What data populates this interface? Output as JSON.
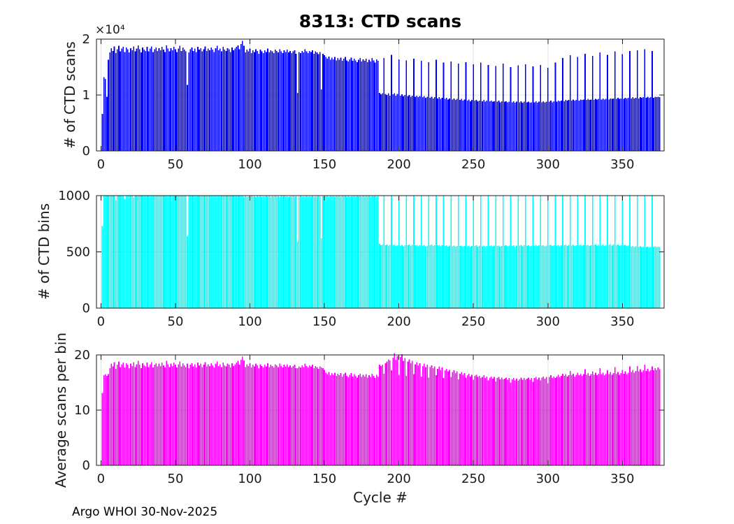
{
  "footer": {
    "text": "Argo WHOI 30-Nov-2025"
  },
  "chart_data": [
    {
      "id": "ctd-scans",
      "type": "bar",
      "title": "8313: CTD scans",
      "ylabel": "# of CTD scans",
      "xlabel": "",
      "bar_color": "#0000ff",
      "xlim": [
        -3,
        378
      ],
      "ylim": [
        0,
        20000
      ],
      "xticks": [
        0,
        50,
        100,
        150,
        200,
        250,
        300,
        350
      ],
      "yticks": [
        0,
        10000,
        20000
      ],
      "ytick_labels": [
        "0",
        "1",
        "2"
      ],
      "y_exponent_label": "×10⁴",
      "x_start": 1,
      "values": [
        6600,
        13200,
        12900,
        9700,
        16300,
        17600,
        18400,
        17900,
        18700,
        17500,
        18200,
        18800,
        17800,
        18300,
        18600,
        17700,
        18500,
        18200,
        17600,
        18400,
        18000,
        18700,
        17800,
        18300,
        18900,
        18200,
        17600,
        18500,
        18100,
        17900,
        18600,
        17800,
        18300,
        18700,
        17700,
        18200,
        18500,
        17900,
        18400,
        18000,
        18600,
        18100,
        17700,
        18900,
        18300,
        17800,
        18400,
        18000,
        18600,
        18200,
        17700,
        18300,
        18800,
        17900,
        18500,
        18100,
        17800,
        11800,
        17600,
        18200,
        18500,
        17900,
        18300,
        17700,
        18600,
        18100,
        18400,
        17800,
        18200,
        18700,
        17900,
        18300,
        18000,
        18500,
        18100,
        17700,
        18400,
        18800,
        18000,
        18300,
        17800,
        18600,
        18100,
        17900,
        18400,
        18200,
        17700,
        18500,
        18000,
        18300,
        18600,
        18900,
        18200,
        19100,
        19700,
        18800,
        17600,
        18100,
        17800,
        18300,
        17500,
        18000,
        17700,
        18200,
        17900,
        17400,
        18100,
        17800,
        17500,
        18000,
        17700,
        18300,
        17600,
        18000,
        17800,
        17500,
        18100,
        17900,
        17600,
        18200,
        17800,
        17500,
        18000,
        17700,
        18100,
        17600,
        17900,
        17500,
        17800,
        18000,
        17400,
        10400,
        17700,
        17500,
        17900,
        17600,
        18200,
        17800,
        17500,
        17900,
        17700,
        18000,
        17400,
        17800,
        17600,
        17300,
        17700,
        11000,
        17400,
        17100,
        16800,
        16500,
        16900,
        16300,
        16700,
        16400,
        16800,
        16200,
        16600,
        16300,
        16700,
        16100,
        16500,
        16800,
        16200,
        16000,
        16400,
        16700,
        16100,
        16500,
        16200,
        15900,
        16300,
        16600,
        16000,
        16400,
        16100,
        16500,
        15900,
        16300,
        16000,
        16600,
        16200,
        15800,
        16400,
        16100,
        10400,
        10100,
        10300,
        16600,
        10200,
        10000,
        10300,
        9900,
        17200,
        10100,
        10300,
        9900,
        10200,
        16400,
        9900,
        10100,
        9800,
        10000,
        16200,
        9800,
        10000,
        9700,
        9900,
        16500,
        9700,
        9900,
        9600,
        9800,
        16100,
        9600,
        9800,
        9500,
        9700,
        15900,
        9500,
        9700,
        9400,
        9600,
        16300,
        9400,
        9600,
        9300,
        9500,
        15800,
        9300,
        9500,
        9200,
        9400,
        16000,
        9200,
        9400,
        9100,
        9300,
        15600,
        9100,
        9300,
        9000,
        9200,
        15900,
        9000,
        9200,
        8900,
        9100,
        15500,
        9000,
        9100,
        8900,
        9000,
        15800,
        8900,
        9100,
        8800,
        9000,
        15400,
        8900,
        9000,
        8800,
        8900,
        15200,
        8800,
        9000,
        8700,
        8900,
        15600,
        8800,
        8900,
        8700,
        8800,
        15000,
        8700,
        8900,
        8600,
        8800,
        15300,
        8700,
        8900,
        8600,
        8800,
        15500,
        8700,
        8800,
        8600,
        8700,
        15100,
        8700,
        8900,
        8600,
        8800,
        15400,
        8700,
        8900,
        8700,
        8800,
        14900,
        8800,
        9000,
        8700,
        8900,
        15800,
        8800,
        9000,
        8900,
        9000,
        16600,
        8900,
        9100,
        9000,
        9100,
        17100,
        9000,
        9200,
        9000,
        9100,
        16800,
        9000,
        9200,
        9100,
        9200,
        17400,
        9100,
        9300,
        9100,
        9200,
        17000,
        9100,
        9300,
        9200,
        9300,
        17600,
        9200,
        9400,
        9200,
        9300,
        17200,
        9200,
        9400,
        9300,
        9400,
        17800,
        9300,
        9500,
        9300,
        9400,
        17300,
        9300,
        9500,
        9400,
        9500,
        17900,
        9400,
        9600,
        9400,
        9500,
        18000,
        9400,
        9600,
        9500,
        9600,
        18200,
        9500,
        9700,
        9500,
        9600,
        17900,
        9500,
        9700,
        9600,
        9700,
        9600
      ]
    },
    {
      "id": "ctd-bins",
      "type": "bar",
      "title": "",
      "ylabel": "# of CTD bins",
      "xlabel": "",
      "bar_color": "#00ffff",
      "xlim": [
        -3,
        378
      ],
      "ylim": [
        0,
        1000
      ],
      "xticks": [
        0,
        50,
        100,
        150,
        200,
        250,
        300,
        350
      ],
      "yticks": [
        0,
        500,
        1000
      ],
      "ytick_labels": [
        "0",
        "500",
        "1000"
      ],
      "y_exponent_label": "",
      "x_start": 1,
      "values": [
        730,
        1000,
        1000,
        1000,
        1000,
        1000,
        1000,
        1000,
        1000,
        960,
        1000,
        1000,
        1000,
        1000,
        1000,
        970,
        1000,
        1000,
        1000,
        1000,
        1000,
        985,
        1000,
        1000,
        1000,
        1000,
        1000,
        1000,
        1000,
        1000,
        1000,
        1000,
        1000,
        1000,
        1000,
        1000,
        1000,
        1000,
        1000,
        1000,
        1000,
        1000,
        1000,
        1000,
        1000,
        1000,
        1000,
        1000,
        1000,
        1000,
        1000,
        1000,
        1000,
        1000,
        1000,
        1000,
        1000,
        640,
        1000,
        1000,
        1000,
        1000,
        1000,
        1000,
        1000,
        1000,
        1000,
        1000,
        1000,
        1000,
        1000,
        1000,
        1000,
        1000,
        1000,
        1000,
        1000,
        1000,
        1000,
        1000,
        1000,
        1000,
        1000,
        1000,
        1000,
        1000,
        1000,
        1000,
        1000,
        1000,
        1000,
        1000,
        1000,
        1000,
        1000,
        990,
        996,
        988,
        995,
        992,
        998,
        990,
        994,
        989,
        996,
        991,
        997,
        988,
        995,
        990,
        998,
        992,
        996,
        989,
        994,
        991,
        997,
        990,
        995,
        988,
        996,
        992,
        998,
        990,
        994,
        989,
        995,
        991,
        997,
        990,
        993,
        590,
        992,
        996,
        990,
        995,
        991,
        997,
        990,
        994,
        992,
        996,
        989,
        995,
        991,
        996,
        990,
        620,
        995,
        992,
        995,
        1000,
        992,
        998,
        994,
        1000,
        990,
        996,
        993,
        999,
        991,
        997,
        994,
        1000,
        992,
        998,
        990,
        995,
        993,
        999,
        991,
        996,
        994,
        1000,
        992,
        997,
        990,
        998,
        993,
        999,
        991,
        996,
        994,
        998,
        992,
        997,
        570,
        560,
        565,
        1000,
        560,
        565,
        555,
        562,
        1000,
        558,
        564,
        552,
        560,
        1000,
        556,
        562,
        550,
        558,
        1000,
        560,
        566,
        554,
        561,
        1000,
        558,
        563,
        551,
        559,
        1000,
        556,
        561,
        549,
        557,
        1000,
        560,
        565,
        553,
        560,
        1000,
        558,
        563,
        551,
        558,
        1000,
        552,
        558,
        548,
        555,
        1000,
        550,
        556,
        546,
        553,
        1000,
        552,
        557,
        547,
        554,
        1000,
        550,
        555,
        545,
        552,
        1000,
        553,
        558,
        548,
        555,
        1000,
        551,
        556,
        546,
        553,
        1000,
        554,
        559,
        549,
        556,
        1000,
        552,
        557,
        547,
        554,
        1000,
        555,
        560,
        550,
        557,
        1000,
        553,
        558,
        548,
        555,
        1000,
        556,
        561,
        551,
        558,
        1000,
        554,
        559,
        549,
        556,
        1000,
        557,
        562,
        552,
        559,
        1000,
        555,
        560,
        550,
        557,
        1000,
        558,
        563,
        553,
        560,
        1000,
        556,
        561,
        551,
        558,
        1000,
        559,
        564,
        554,
        561,
        1000,
        557,
        562,
        552,
        559,
        1000,
        560,
        565,
        555,
        562,
        1000,
        558,
        563,
        553,
        560,
        1000,
        561,
        566,
        556,
        563,
        1000,
        559,
        564,
        554,
        561,
        1000,
        562,
        567,
        557,
        564,
        1000,
        560,
        565,
        555,
        562,
        1000,
        558,
        563,
        553,
        560,
        1000,
        548,
        552,
        544,
        549,
        1000,
        546,
        550,
        542,
        547,
        1000,
        544,
        548,
        540,
        545,
        1000,
        545,
        550,
        543,
        548,
        544
      ]
    },
    {
      "id": "avg-scans-per-bin",
      "type": "bar",
      "title": "",
      "ylabel": "Average scans per bin",
      "xlabel": "Cycle #",
      "bar_color": "#ff00ff",
      "xlim": [
        -3,
        378
      ],
      "ylim": [
        0,
        20
      ],
      "xticks": [
        0,
        50,
        100,
        150,
        200,
        250,
        300,
        350
      ],
      "yticks": [
        0,
        10,
        20
      ],
      "ytick_labels": [
        "0",
        "10",
        "20"
      ],
      "y_exponent_label": "",
      "x_start": 1,
      "values": [
        13.1,
        16.3,
        16.5,
        16.2,
        16.5,
        17.6,
        18.4,
        17.9,
        18.7,
        17.5,
        18.2,
        18.8,
        17.8,
        18.3,
        18.6,
        17.7,
        18.5,
        18.2,
        17.6,
        18.4,
        18.0,
        18.7,
        17.8,
        18.3,
        18.9,
        18.2,
        17.6,
        18.5,
        18.1,
        17.9,
        18.6,
        17.8,
        18.3,
        18.7,
        17.7,
        18.2,
        18.5,
        17.9,
        18.4,
        18.0,
        18.6,
        18.1,
        17.7,
        18.9,
        18.3,
        17.8,
        18.4,
        18.0,
        18.6,
        18.2,
        17.7,
        18.3,
        18.8,
        17.9,
        18.5,
        18.1,
        17.8,
        18.4,
        17.6,
        18.2,
        18.5,
        17.9,
        18.3,
        17.7,
        18.6,
        18.1,
        18.4,
        17.8,
        18.2,
        18.7,
        17.9,
        18.3,
        18.0,
        18.5,
        18.1,
        17.7,
        18.4,
        18.8,
        18.0,
        18.3,
        17.8,
        18.6,
        18.1,
        17.9,
        18.4,
        18.2,
        17.7,
        18.5,
        18.0,
        18.3,
        18.6,
        18.9,
        18.2,
        19.1,
        19.7,
        19.0,
        17.8,
        18.3,
        18.0,
        18.5,
        17.7,
        18.2,
        17.9,
        18.4,
        18.1,
        17.6,
        18.3,
        18.0,
        17.7,
        18.2,
        17.9,
        18.5,
        17.8,
        18.2,
        18.0,
        17.7,
        18.3,
        18.1,
        17.8,
        18.4,
        18.0,
        17.7,
        18.2,
        17.9,
        18.3,
        17.8,
        18.1,
        17.7,
        18.0,
        18.2,
        17.6,
        17.6,
        17.9,
        17.7,
        18.1,
        17.8,
        18.4,
        18.0,
        17.7,
        18.1,
        17.9,
        18.2,
        17.6,
        18.0,
        17.8,
        17.5,
        17.9,
        17.7,
        17.6,
        17.3,
        16.8,
        16.5,
        16.9,
        16.3,
        16.7,
        16.4,
        16.8,
        16.2,
        16.6,
        16.3,
        16.7,
        16.1,
        16.5,
        16.8,
        16.2,
        16.0,
        16.4,
        16.7,
        16.1,
        16.5,
        16.2,
        15.9,
        16.3,
        16.6,
        16.0,
        16.4,
        16.1,
        16.5,
        15.9,
        16.3,
        16.0,
        16.6,
        16.2,
        15.8,
        16.4,
        16.1,
        18.2,
        18.0,
        18.2,
        16.6,
        18.5,
        18.8,
        19.2,
        19.0,
        17.2,
        19.5,
        20.3,
        19.1,
        19.8,
        16.4,
        19.6,
        20.1,
        18.9,
        19.4,
        16.2,
        18.8,
        19.2,
        18.5,
        18.9,
        16.5,
        18.3,
        18.7,
        18.1,
        18.5,
        16.1,
        18.0,
        18.4,
        17.8,
        18.2,
        15.9,
        17.8,
        18.1,
        17.6,
        17.9,
        16.3,
        17.5,
        17.9,
        17.3,
        17.7,
        15.8,
        17.2,
        17.5,
        17.0,
        17.3,
        16.0,
        16.9,
        17.2,
        16.7,
        17.0,
        15.6,
        16.6,
        16.9,
        16.4,
        16.7,
        15.9,
        16.3,
        16.6,
        16.1,
        16.4,
        15.5,
        16.2,
        16.4,
        16.0,
        16.2,
        15.8,
        16.0,
        16.3,
        15.8,
        16.1,
        15.4,
        15.9,
        16.1,
        15.7,
        16.0,
        15.2,
        15.8,
        16.0,
        15.6,
        15.9,
        15.6,
        15.7,
        15.9,
        15.5,
        15.8,
        15.0,
        15.6,
        15.8,
        15.4,
        15.7,
        15.3,
        15.6,
        15.9,
        15.5,
        15.8,
        15.5,
        15.7,
        15.9,
        15.5,
        15.8,
        15.1,
        15.8,
        16.0,
        15.6,
        15.9,
        15.4,
        15.9,
        16.1,
        15.7,
        16.0,
        14.9,
        16.0,
        16.3,
        15.8,
        16.1,
        15.8,
        16.1,
        16.4,
        16.0,
        16.2,
        16.6,
        16.2,
        16.5,
        16.1,
        16.3,
        17.1,
        16.3,
        16.6,
        16.1,
        16.4,
        16.8,
        16.3,
        16.6,
        16.2,
        16.5,
        17.4,
        16.4,
        16.7,
        16.2,
        16.5,
        17.0,
        16.4,
        16.8,
        16.3,
        16.6,
        17.6,
        16.5,
        16.8,
        16.3,
        16.6,
        17.2,
        16.5,
        16.9,
        16.4,
        16.7,
        17.8,
        16.6,
        16.9,
        16.4,
        16.7,
        17.3,
        16.6,
        17.0,
        16.5,
        16.8,
        17.9,
        16.9,
        17.3,
        16.8,
        17.1,
        18.0,
        17.0,
        17.4,
        16.9,
        17.2,
        18.2,
        17.1,
        17.5,
        17.0,
        17.3,
        17.9,
        17.2,
        17.6,
        17.3,
        17.7,
        17.4
      ]
    }
  ]
}
